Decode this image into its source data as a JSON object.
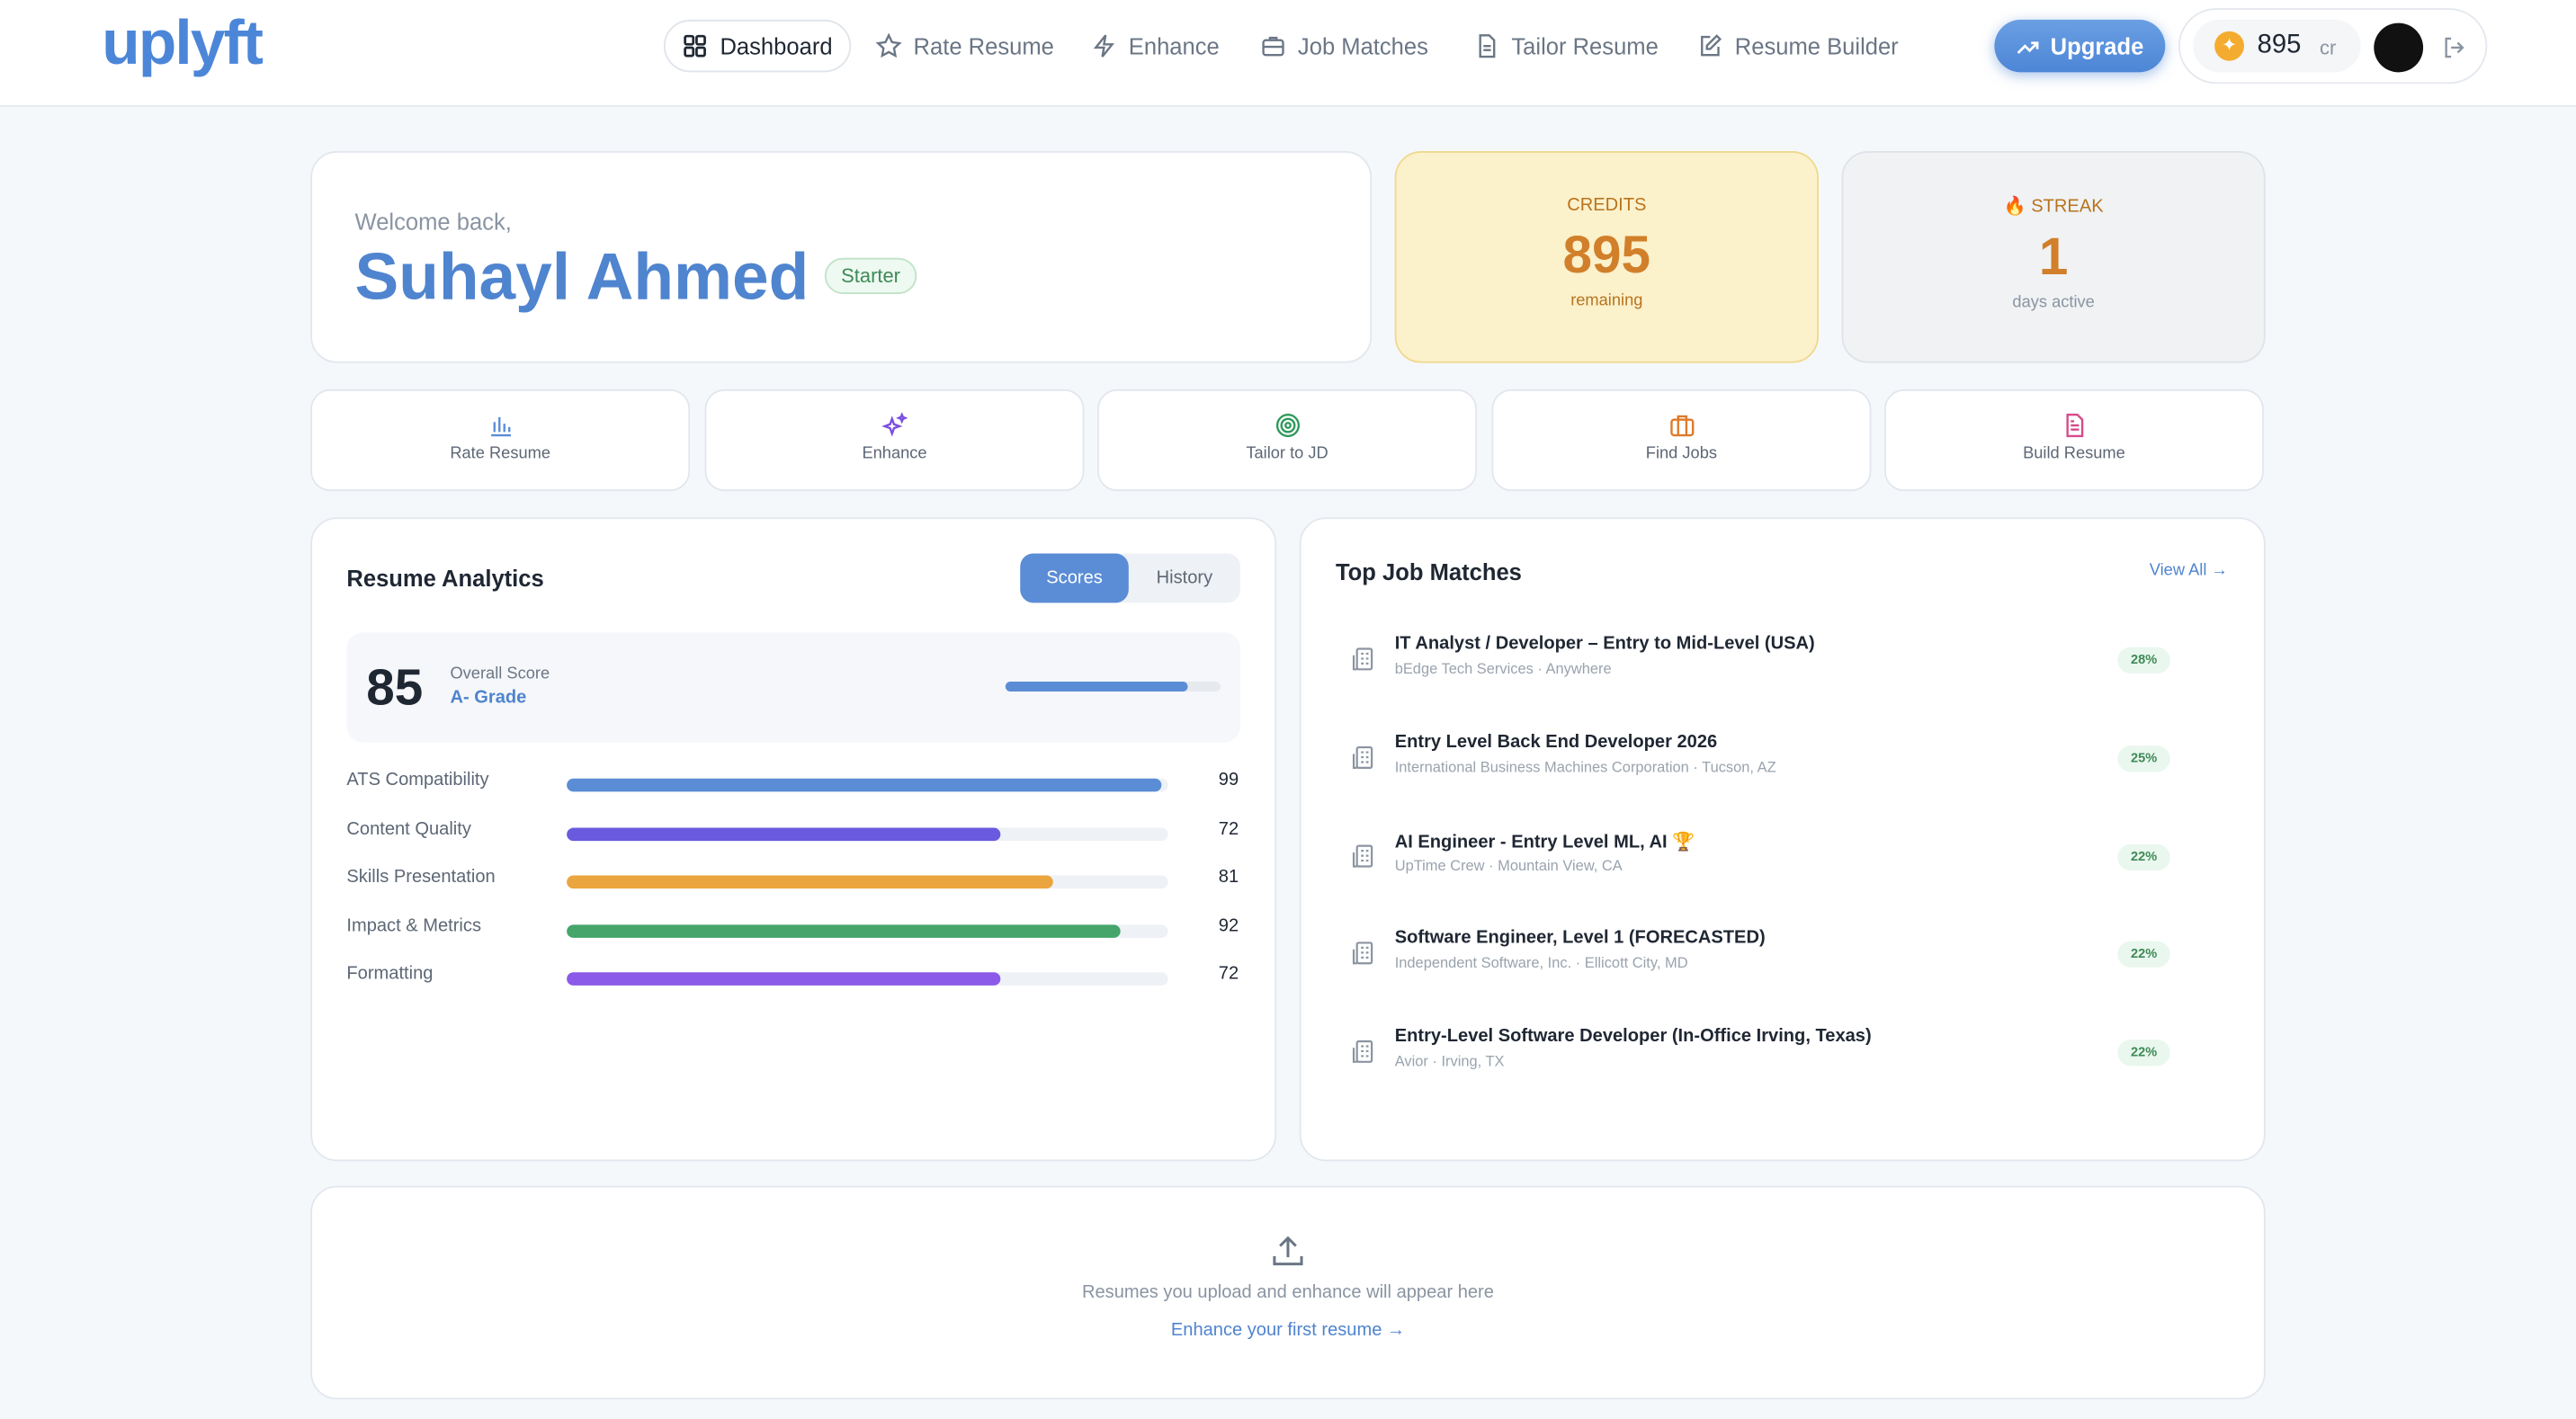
{
  "nav": {
    "logo": "uplyft",
    "items": [
      "Dashboard",
      "Rate Resume",
      "Enhance",
      "Job Matches",
      "Tailor Resume",
      "Resume Builder"
    ],
    "upgrade": "Upgrade",
    "credits": 895,
    "credits_unit": "cr"
  },
  "welcome": {
    "greeting": "Welcome back,",
    "name": "Suhayl Ahmed",
    "plan": "Starter"
  },
  "credits": {
    "label": "CREDITS",
    "value": 895,
    "note": "remaining"
  },
  "streak": {
    "label": "STREAK",
    "value": 1,
    "note": "days active"
  },
  "actions": [
    "Rate Resume",
    "Enhance",
    "Tailor to JD",
    "Find Jobs",
    "Build Resume"
  ],
  "analytics": {
    "title": "Resume Analytics",
    "tabs": [
      "Scores",
      "History"
    ],
    "overall": 85,
    "overall_label": "Overall Score",
    "grade": "A- Grade",
    "metrics": [
      {
        "name": "ATS Compatibility",
        "value": 99,
        "color": "#5b8dd6"
      },
      {
        "name": "Content Quality",
        "value": 72,
        "color": "#6a5ae0"
      },
      {
        "name": "Skills Presentation",
        "value": 81,
        "color": "#eba53e"
      },
      {
        "name": "Impact & Metrics",
        "value": 92,
        "color": "#45a56a"
      },
      {
        "name": "Formatting",
        "value": 72,
        "color": "#8b5ae8"
      }
    ]
  },
  "matches": {
    "title": "Top Job Matches",
    "view_all": "View All →",
    "jobs": [
      {
        "title": "IT Analyst / Developer – Entry to Mid-Level (USA)",
        "company": "bEdge Tech Services · Anywhere",
        "match": "28%"
      },
      {
        "title": "Entry Level Back End Developer 2026",
        "company": "International Business Machines Corporation · Tucson, AZ",
        "match": "25%"
      },
      {
        "title": "AI Engineer - Entry Level ML, AI 🏆",
        "company": "UpTime Crew · Mountain View, CA",
        "match": "22%"
      },
      {
        "title": "Software Engineer, Level 1 (FORECASTED)",
        "company": "Independent Software, Inc. · Ellicott City, MD",
        "match": "22%"
      },
      {
        "title": "Entry-Level Software Developer (In-Office Irving, Texas)",
        "company": "Avior · Irving, TX",
        "match": "22%"
      }
    ]
  },
  "uploads": {
    "message": "Resumes you upload and enhance will appear here",
    "link": "Enhance your first resume →"
  }
}
